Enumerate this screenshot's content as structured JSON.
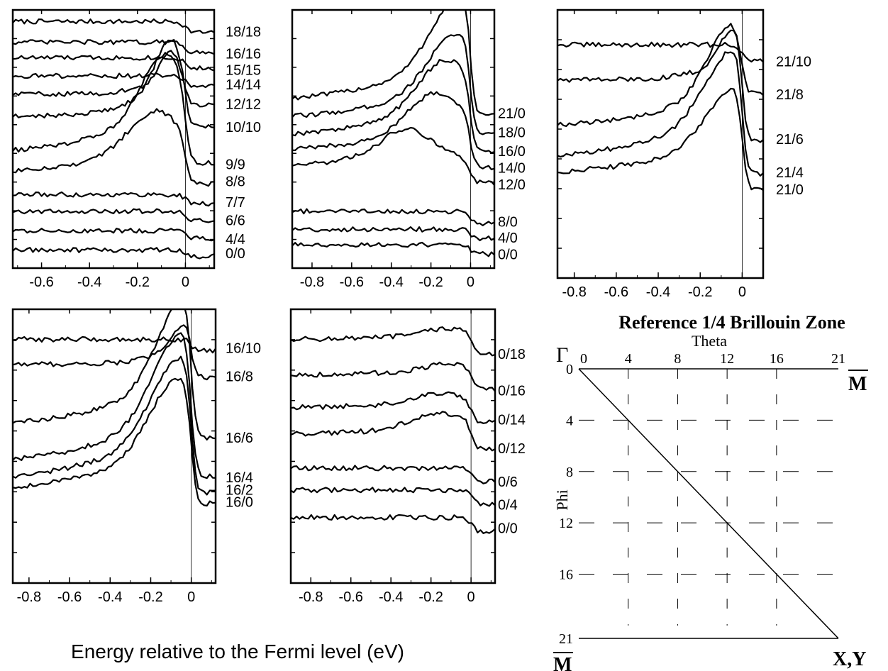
{
  "figure": {
    "xlabel": "Energy relative to the Fermi level (eV)"
  },
  "chart_data": [
    {
      "type": "line",
      "panel": "top-left",
      "xlim": [
        -0.72,
        0.12
      ],
      "xticks": [
        -0.6,
        -0.4,
        -0.2,
        0
      ],
      "xtick_labels": [
        "-0.6",
        "-0.4",
        "-0.2",
        "0"
      ],
      "fermi_line": 0,
      "series": [
        {
          "name": "18/18",
          "offset": 0.92,
          "peak": 0.0,
          "peak_pos": -0.05,
          "width": 0.1,
          "base": 0.035,
          "step": 0.035
        },
        {
          "name": "16/16",
          "offset": 0.84,
          "peak": 0.0,
          "peak_pos": -0.05,
          "width": 0.1,
          "base": 0.035,
          "step": 0.035
        },
        {
          "name": "15/15",
          "offset": 0.78,
          "peak": 0.0,
          "peak_pos": -0.05,
          "width": 0.1,
          "base": 0.035,
          "step": 0.035
        },
        {
          "name": "14/14",
          "offset": 0.71,
          "peak": 0.0,
          "peak_pos": -0.05,
          "width": 0.1,
          "base": 0.035,
          "step": 0.035
        },
        {
          "name": "12/12",
          "offset": 0.64,
          "peak": 0.12,
          "peak_pos": -0.06,
          "width": 0.07,
          "base": 0.035,
          "step": 0.04
        },
        {
          "name": "10/10",
          "offset": 0.555,
          "peak": 0.22,
          "peak_pos": -0.06,
          "width": 0.1,
          "base": 0.035,
          "step": 0.04
        },
        {
          "name": "9/9",
          "offset": 0.415,
          "peak": 0.28,
          "peak_pos": -0.08,
          "width": 0.16,
          "base": 0.035,
          "step": 0.04
        },
        {
          "name": "8/8",
          "offset": 0.335,
          "peak": 0.18,
          "peak_pos": -0.12,
          "width": 0.18,
          "base": 0.03,
          "step": 0.04
        },
        {
          "name": "7/7",
          "offset": 0.255,
          "peak": 0.0,
          "peak_pos": -0.1,
          "width": 0.2,
          "base": 0.03,
          "step": 0.03
        },
        {
          "name": "6/6",
          "offset": 0.19,
          "peak": 0.0,
          "peak_pos": -0.1,
          "width": 0.2,
          "base": 0.03,
          "step": 0.03
        },
        {
          "name": "4/4",
          "offset": 0.12,
          "peak": 0.0,
          "peak_pos": -0.1,
          "width": 0.2,
          "base": 0.025,
          "step": 0.025
        },
        {
          "name": "0/0",
          "offset": 0.05,
          "peak": 0.0,
          "peak_pos": -0.1,
          "width": 0.2,
          "base": 0.02,
          "step": 0.02
        }
      ]
    },
    {
      "type": "line",
      "panel": "top-middle",
      "xlim": [
        -0.9,
        0.12
      ],
      "xticks": [
        -0.8,
        -0.6,
        -0.4,
        -0.2,
        0
      ],
      "xtick_labels": [
        "-0.8",
        "-0.6",
        "-0.4",
        "-0.2",
        "0"
      ],
      "fermi_line": 0,
      "series": [
        {
          "name": "21/0",
          "offset": 0.6,
          "peak": 0.3,
          "peak_pos": -0.05,
          "width": 0.22,
          "base": 0.05,
          "step": 0.05
        },
        {
          "name": "18/0",
          "offset": 0.53,
          "peak": 0.24,
          "peak_pos": -0.07,
          "width": 0.22,
          "base": 0.05,
          "step": 0.05
        },
        {
          "name": "16/0",
          "offset": 0.46,
          "peak": 0.22,
          "peak_pos": -0.12,
          "width": 0.22,
          "base": 0.05,
          "step": 0.05
        },
        {
          "name": "14/0",
          "offset": 0.4,
          "peak": 0.17,
          "peak_pos": -0.17,
          "width": 0.22,
          "base": 0.05,
          "step": 0.05
        },
        {
          "name": "12/0",
          "offset": 0.34,
          "peak": 0.11,
          "peak_pos": -0.32,
          "width": 0.2,
          "base": 0.05,
          "step": 0.05
        },
        {
          "name": "8/0",
          "offset": 0.18,
          "peak": 0.0,
          "peak_pos": -0.3,
          "width": 0.2,
          "base": 0.04,
          "step": 0.04
        },
        {
          "name": "4/0",
          "offset": 0.12,
          "peak": 0.0,
          "peak_pos": -0.3,
          "width": 0.2,
          "base": 0.03,
          "step": 0.03
        },
        {
          "name": "0/0",
          "offset": 0.06,
          "peak": 0.0,
          "peak_pos": -0.3,
          "width": 0.2,
          "base": 0.03,
          "step": 0.03
        }
      ]
    },
    {
      "type": "line",
      "panel": "top-right",
      "xlim": [
        -0.88,
        0.1
      ],
      "xticks": [
        -0.8,
        -0.6,
        -0.4,
        -0.2,
        0
      ],
      "xtick_labels": [
        "-0.8",
        "-0.6",
        "-0.4",
        "-0.2",
        "0"
      ],
      "fermi_line": 0,
      "series": [
        {
          "name": "21/10",
          "offset": 0.82,
          "peak": 0.0,
          "peak_pos": -0.04,
          "width": 0.1,
          "base": 0.05,
          "step": 0.06
        },
        {
          "name": "21/8",
          "offset": 0.7,
          "peak": 0.14,
          "peak_pos": -0.04,
          "width": 0.1,
          "base": 0.04,
          "step": 0.06
        },
        {
          "name": "21/6",
          "offset": 0.52,
          "peak": 0.28,
          "peak_pos": -0.04,
          "width": 0.18,
          "base": 0.05,
          "step": 0.06
        },
        {
          "name": "21/4",
          "offset": 0.4,
          "peak": 0.3,
          "peak_pos": -0.03,
          "width": 0.22,
          "base": 0.05,
          "step": 0.06
        },
        {
          "name": "21/0",
          "offset": 0.34,
          "peak": 0.24,
          "peak_pos": -0.02,
          "width": 0.22,
          "base": 0.05,
          "step": 0.06
        }
      ]
    },
    {
      "type": "line",
      "panel": "bottom-left",
      "xlim": [
        -0.88,
        0.12
      ],
      "xticks": [
        -0.8,
        -0.6,
        -0.4,
        -0.2,
        0
      ],
      "xtick_labels": [
        "-0.8",
        "-0.6",
        "-0.4",
        "-0.2",
        "0"
      ],
      "fermi_line": 0,
      "series": [
        {
          "name": "16/10",
          "offset": 0.86,
          "peak": 0.0,
          "peak_pos": -0.03,
          "width": 0.1,
          "base": 0.03,
          "step": 0.05
        },
        {
          "name": "16/8",
          "offset": 0.76,
          "peak": 0.12,
          "peak_pos": -0.02,
          "width": 0.1,
          "base": 0.04,
          "step": 0.05
        },
        {
          "name": "16/6",
          "offset": 0.54,
          "peak": 0.34,
          "peak_pos": -0.03,
          "width": 0.2,
          "base": 0.04,
          "step": 0.05
        },
        {
          "name": "16/4",
          "offset": 0.4,
          "peak": 0.35,
          "peak_pos": -0.04,
          "width": 0.22,
          "base": 0.04,
          "step": 0.05
        },
        {
          "name": "16/2",
          "offset": 0.34,
          "peak": 0.33,
          "peak_pos": -0.05,
          "width": 0.22,
          "base": 0.04,
          "step": 0.05
        },
        {
          "name": "16/0",
          "offset": 0.3,
          "peak": 0.3,
          "peak_pos": -0.06,
          "width": 0.22,
          "base": 0.04,
          "step": 0.05
        }
      ]
    },
    {
      "type": "line",
      "panel": "bottom-middle",
      "xlim": [
        -0.9,
        0.12
      ],
      "xticks": [
        -0.8,
        -0.6,
        -0.4,
        -0.2,
        0
      ],
      "xtick_labels": [
        "-0.8",
        "-0.6",
        "-0.4",
        "-0.2",
        "0"
      ],
      "fermi_line": 0,
      "series": [
        {
          "name": "0/18",
          "offset": 0.85,
          "peak": 0.03,
          "peak_pos": -0.1,
          "width": 0.2,
          "base": 0.04,
          "step": 0.06
        },
        {
          "name": "0/16",
          "offset": 0.72,
          "peak": 0.03,
          "peak_pos": -0.1,
          "width": 0.2,
          "base": 0.04,
          "step": 0.06
        },
        {
          "name": "0/14",
          "offset": 0.6,
          "peak": 0.04,
          "peak_pos": -0.15,
          "width": 0.2,
          "base": 0.04,
          "step": 0.06
        },
        {
          "name": "0/12",
          "offset": 0.5,
          "peak": 0.06,
          "peak_pos": -0.15,
          "width": 0.22,
          "base": 0.04,
          "step": 0.06
        },
        {
          "name": "0/6",
          "offset": 0.38,
          "peak": 0.0,
          "peak_pos": -0.2,
          "width": 0.2,
          "base": 0.04,
          "step": 0.05
        },
        {
          "name": "0/4",
          "offset": 0.3,
          "peak": 0.0,
          "peak_pos": -0.2,
          "width": 0.2,
          "base": 0.04,
          "step": 0.05
        },
        {
          "name": "0/0",
          "offset": 0.2,
          "peak": 0.0,
          "peak_pos": -0.2,
          "width": 0.2,
          "base": 0.04,
          "step": 0.05
        }
      ]
    },
    {
      "type": "diagram",
      "panel": "bottom-right",
      "title": "Reference 1/4 Brillouin Zone",
      "xlabel": "Theta",
      "ylabel": "Phi",
      "xticks": [
        0,
        4,
        8,
        12,
        16,
        21
      ],
      "yticks": [
        0,
        4,
        8,
        12,
        16,
        21
      ],
      "corner_labels": {
        "origin": "Γ",
        "top_right": "M",
        "bottom_left": "M",
        "bottom_right": "X,Y"
      },
      "diagonal": true,
      "dashed_grid": true
    }
  ]
}
